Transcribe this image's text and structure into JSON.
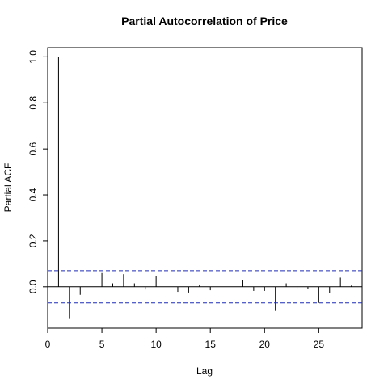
{
  "chart_data": {
    "type": "bar",
    "title": "Partial Autocorrelation of Price",
    "xlabel": "Lag",
    "ylabel": "Partial ACF",
    "xlim": [
      0,
      29
    ],
    "ylim": [
      -0.18,
      1.04
    ],
    "x_ticks": [
      0,
      5,
      10,
      15,
      20,
      25
    ],
    "y_ticks": [
      0.0,
      0.2,
      0.4,
      0.6,
      0.8,
      1.0
    ],
    "y_tick_labels": [
      "0.0",
      "0.2",
      "0.4",
      "0.6",
      "0.8",
      "1.0"
    ],
    "lags": [
      1,
      2,
      3,
      4,
      5,
      6,
      7,
      8,
      9,
      10,
      11,
      12,
      13,
      14,
      15,
      16,
      17,
      18,
      19,
      20,
      21,
      22,
      23,
      24,
      25,
      26,
      27,
      28
    ],
    "values": [
      1.0,
      -0.14,
      -0.035,
      0.0,
      0.06,
      0.015,
      0.055,
      0.015,
      -0.012,
      0.048,
      0.0,
      -0.022,
      -0.025,
      0.01,
      -0.015,
      0.0,
      0.0,
      0.03,
      -0.018,
      -0.018,
      -0.105,
      0.015,
      -0.01,
      -0.01,
      -0.07,
      -0.028,
      0.04,
      0.005
    ],
    "confidence_bound": 0.07,
    "grid": false,
    "legend": "none"
  }
}
